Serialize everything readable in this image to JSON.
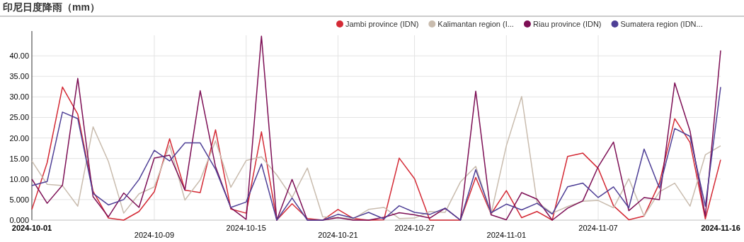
{
  "chart_data": {
    "type": "line",
    "title": "印尼日度降雨（mm）",
    "categories": [
      "2024-10-01",
      null,
      null,
      null,
      null,
      null,
      null,
      null,
      "2024-10-09",
      null,
      null,
      null,
      null,
      null,
      "2024-10-15",
      null,
      null,
      null,
      null,
      null,
      "2024-10-21",
      null,
      null,
      null,
      null,
      "2024-10-27",
      null,
      null,
      null,
      null,
      null,
      "2024-11-01",
      null,
      null,
      null,
      null,
      null,
      "2024-11-07",
      null,
      null,
      null,
      null,
      null,
      null,
      null,
      "2024-11-16"
    ],
    "series": [
      {
        "name": "Jambi province (IDN)",
        "color": "#d42a35",
        "values": [
          2.6,
          14.0,
          32.4,
          25.8,
          7.0,
          0.5,
          0,
          2.1,
          6.9,
          19.8,
          7.3,
          6.7,
          22.0,
          2.7,
          1.7,
          21.5,
          0,
          4.0,
          0.4,
          0,
          2.6,
          0.4,
          0,
          0.1,
          15.1,
          10.1,
          0,
          0,
          0,
          10.4,
          1.5,
          7.2,
          0.6,
          2.1,
          0,
          15.5,
          16.3,
          12.6,
          3.5,
          0.1,
          1.0,
          9.0,
          24.7,
          18.9,
          0.3,
          14.7
        ]
      },
      {
        "name": "Kalimantan region (I...",
        "color": "#c9bcae",
        "values": [
          14.4,
          8.7,
          8.4,
          3.4,
          22.7,
          14.3,
          1.7,
          6.4,
          8.1,
          18.2,
          4.9,
          9.8,
          19.3,
          8.0,
          14.5,
          15.4,
          11.0,
          5.5,
          12.7,
          0.8,
          0.6,
          0.3,
          2.6,
          3.1,
          0.4,
          0.5,
          2.1,
          1.9,
          9.3,
          13.1,
          1.5,
          18.1,
          30.1,
          4.4,
          1.7,
          3.3,
          4.6,
          4.8,
          3.0,
          10.1,
          1.0,
          6.9,
          9.0,
          3.4,
          15.9,
          18.1
        ]
      },
      {
        "name": "Riau province (IDN)",
        "color": "#7d0f55",
        "values": [
          10.0,
          4.1,
          8.5,
          34.5,
          5.7,
          0.8,
          6.6,
          3.1,
          15.1,
          15.8,
          7.3,
          31.5,
          13.0,
          3.0,
          0.2,
          44.8,
          0,
          9.9,
          0,
          0,
          0.6,
          0,
          0,
          0.7,
          1.8,
          1.3,
          0.5,
          2.9,
          0,
          31.4,
          1.3,
          0.1,
          6.7,
          5.1,
          0,
          2.9,
          4.7,
          13.0,
          19.0,
          2.3,
          5.5,
          5.0,
          33.4,
          21.7,
          1.0,
          41.3
        ]
      },
      {
        "name": "Sumatera region (IDN...",
        "color": "#4e3f96",
        "values": [
          8.4,
          9.4,
          26.3,
          24.7,
          6.5,
          3.7,
          5.0,
          9.9,
          17.0,
          14.4,
          18.8,
          18.8,
          12.4,
          3.1,
          4.4,
          13.7,
          0,
          5.4,
          0,
          0,
          1.4,
          0.5,
          1.9,
          0.3,
          3.5,
          1.9,
          1.4,
          2.9,
          0,
          12.3,
          1.8,
          3.9,
          2.5,
          4.1,
          1.5,
          8.1,
          9.0,
          5.5,
          8.1,
          3.0,
          17.3,
          7.8,
          22.3,
          20.4,
          3.4,
          32.4
        ]
      }
    ],
    "ylim": [
      0,
      45
    ],
    "yticks": [
      {
        "value": 0,
        "label": "0.000"
      },
      {
        "value": 5,
        "label": "5.000"
      },
      {
        "value": 10,
        "label": "10.00"
      },
      {
        "value": 15,
        "label": "15.00"
      },
      {
        "value": 20,
        "label": "20.00"
      },
      {
        "value": 25,
        "label": "25.00"
      },
      {
        "value": 30,
        "label": "30.00"
      },
      {
        "value": 35,
        "label": "35.00"
      },
      {
        "value": 40,
        "label": "40.00"
      }
    ],
    "grid": true,
    "legend": "top right",
    "marker": "none",
    "line_style": "solid"
  }
}
